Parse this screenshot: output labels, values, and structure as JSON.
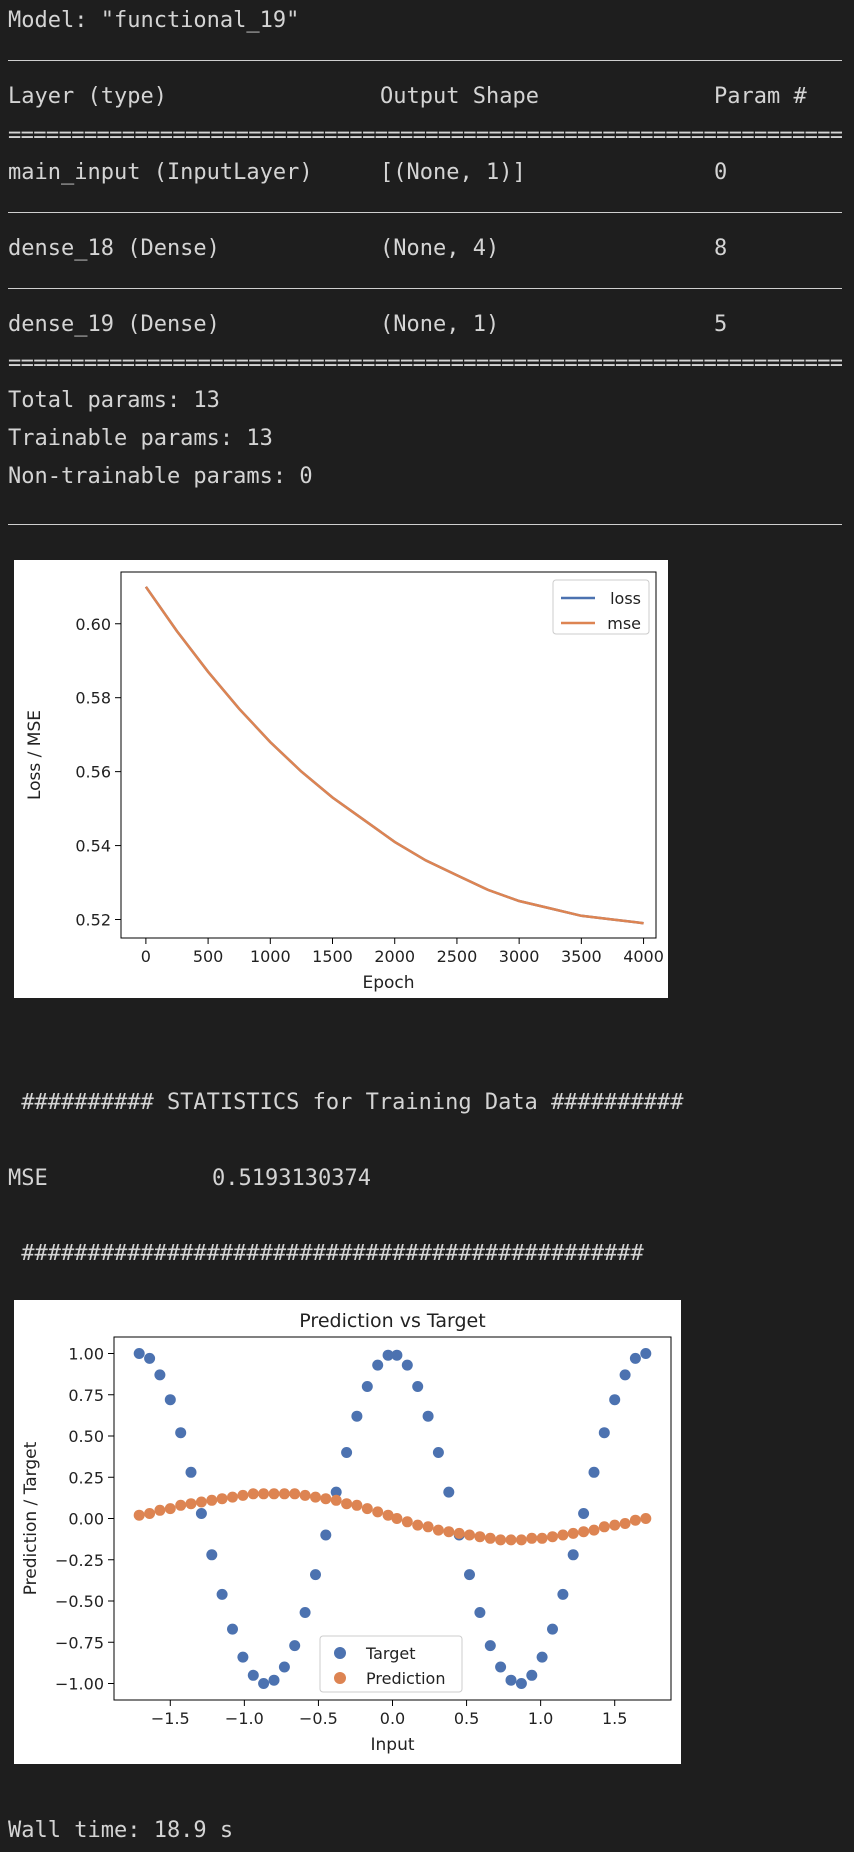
{
  "summary": {
    "model_line": "Model: \"functional_19\"",
    "headers": [
      "Layer (type)",
      "Output Shape",
      "Param #"
    ],
    "rows": [
      {
        "layer": "main_input (InputLayer)",
        "shape": "[(None, 1)]",
        "params": "0"
      },
      {
        "layer": "dense_18 (Dense)",
        "shape": "(None, 4)",
        "params": "8"
      },
      {
        "layer": "dense_19 (Dense)",
        "shape": "(None, 1)",
        "params": "5"
      }
    ],
    "total": "Total params: 13",
    "trainable": "Trainable params: 13",
    "non_trainable": "Non-trainable params: 0"
  },
  "stats": {
    "header": " ########## STATISTICS for Training Data ##########",
    "mse_label": "MSE",
    "mse_value": "0.5193130374",
    "footer": " ###############################################"
  },
  "wall_time": "Wall time: 18.9 s",
  "colors": {
    "background": "#1e1e1e",
    "text": "#d4d4d4",
    "series_blue": "#4c72b0",
    "series_orange": "#dd8452"
  },
  "chart_data": [
    {
      "type": "line",
      "title": "",
      "xlabel": "Epoch",
      "ylabel": "Loss / MSE",
      "xlim": [
        -200,
        4100
      ],
      "ylim": [
        0.515,
        0.614
      ],
      "xticks": [
        "0",
        "500",
        "1000",
        "1500",
        "2000",
        "2500",
        "3000",
        "3500",
        "4000"
      ],
      "yticks": [
        "0.52",
        "0.54",
        "0.56",
        "0.58",
        "0.60"
      ],
      "legend_position": "top-right",
      "x": [
        0,
        250,
        500,
        750,
        1000,
        1250,
        1500,
        1750,
        2000,
        2250,
        2500,
        2750,
        3000,
        3250,
        3500,
        3750,
        4000
      ],
      "series": [
        {
          "name": "loss",
          "color": "#4c72b0",
          "values": [
            0.61,
            0.598,
            0.587,
            0.577,
            0.568,
            0.56,
            0.553,
            0.547,
            0.541,
            0.536,
            0.532,
            0.528,
            0.525,
            0.523,
            0.521,
            0.52,
            0.519
          ]
        },
        {
          "name": "mse",
          "color": "#dd8452",
          "values": [
            0.61,
            0.598,
            0.587,
            0.577,
            0.568,
            0.56,
            0.553,
            0.547,
            0.541,
            0.536,
            0.532,
            0.528,
            0.525,
            0.523,
            0.521,
            0.52,
            0.519
          ]
        }
      ]
    },
    {
      "type": "scatter",
      "title": "Prediction vs Target",
      "xlabel": "Input",
      "ylabel": "Prediction / Target",
      "xlim": [
        -1.88,
        1.88
      ],
      "ylim": [
        -1.1,
        1.1
      ],
      "xticks": [
        "−1.5",
        "−1.0",
        "−0.5",
        "0.0",
        "0.5",
        "1.0",
        "1.5"
      ],
      "yticks": [
        "1.00",
        "0.75",
        "0.50",
        "0.25",
        "0.00",
        "−0.25",
        "−0.50",
        "−0.75",
        "−1.00"
      ],
      "legend_position": "lower center",
      "series": [
        {
          "name": "Target",
          "color": "#4c72b0",
          "points": [
            [
              -1.71,
              1.0
            ],
            [
              -1.64,
              0.97
            ],
            [
              -1.57,
              0.87
            ],
            [
              -1.5,
              0.72
            ],
            [
              -1.43,
              0.52
            ],
            [
              -1.36,
              0.28
            ],
            [
              -1.29,
              0.03
            ],
            [
              -1.22,
              -0.22
            ],
            [
              -1.15,
              -0.46
            ],
            [
              -1.08,
              -0.67
            ],
            [
              -1.01,
              -0.84
            ],
            [
              -0.94,
              -0.95
            ],
            [
              -0.87,
              -1.0
            ],
            [
              -0.8,
              -0.98
            ],
            [
              -0.73,
              -0.9
            ],
            [
              -0.66,
              -0.77
            ],
            [
              -0.59,
              -0.57
            ],
            [
              -0.52,
              -0.34
            ],
            [
              -0.45,
              -0.1
            ],
            [
              -0.38,
              0.16
            ],
            [
              -0.31,
              0.4
            ],
            [
              -0.24,
              0.62
            ],
            [
              -0.17,
              0.8
            ],
            [
              -0.1,
              0.93
            ],
            [
              -0.03,
              0.99
            ],
            [
              0.03,
              0.99
            ],
            [
              0.1,
              0.93
            ],
            [
              0.17,
              0.8
            ],
            [
              0.24,
              0.62
            ],
            [
              0.31,
              0.4
            ],
            [
              0.38,
              0.16
            ],
            [
              0.45,
              -0.1
            ],
            [
              0.52,
              -0.34
            ],
            [
              0.59,
              -0.57
            ],
            [
              0.66,
              -0.77
            ],
            [
              0.73,
              -0.9
            ],
            [
              0.8,
              -0.98
            ],
            [
              0.87,
              -1.0
            ],
            [
              0.94,
              -0.95
            ],
            [
              1.01,
              -0.84
            ],
            [
              1.08,
              -0.67
            ],
            [
              1.15,
              -0.46
            ],
            [
              1.22,
              -0.22
            ],
            [
              1.29,
              0.03
            ],
            [
              1.36,
              0.28
            ],
            [
              1.43,
              0.52
            ],
            [
              1.5,
              0.72
            ],
            [
              1.57,
              0.87
            ],
            [
              1.64,
              0.97
            ],
            [
              1.71,
              1.0
            ]
          ]
        },
        {
          "name": "Prediction",
          "color": "#dd8452",
          "points": [
            [
              -1.71,
              0.02
            ],
            [
              -1.64,
              0.03
            ],
            [
              -1.57,
              0.05
            ],
            [
              -1.5,
              0.06
            ],
            [
              -1.43,
              0.08
            ],
            [
              -1.36,
              0.09
            ],
            [
              -1.29,
              0.1
            ],
            [
              -1.22,
              0.11
            ],
            [
              -1.15,
              0.12
            ],
            [
              -1.08,
              0.13
            ],
            [
              -1.01,
              0.14
            ],
            [
              -0.94,
              0.15
            ],
            [
              -0.87,
              0.15
            ],
            [
              -0.8,
              0.15
            ],
            [
              -0.73,
              0.15
            ],
            [
              -0.66,
              0.15
            ],
            [
              -0.59,
              0.14
            ],
            [
              -0.52,
              0.13
            ],
            [
              -0.45,
              0.12
            ],
            [
              -0.38,
              0.11
            ],
            [
              -0.31,
              0.09
            ],
            [
              -0.24,
              0.08
            ],
            [
              -0.17,
              0.06
            ],
            [
              -0.1,
              0.04
            ],
            [
              -0.03,
              0.02
            ],
            [
              0.03,
              0.0
            ],
            [
              0.1,
              -0.02
            ],
            [
              0.17,
              -0.04
            ],
            [
              0.24,
              -0.05
            ],
            [
              0.31,
              -0.07
            ],
            [
              0.38,
              -0.08
            ],
            [
              0.45,
              -0.09
            ],
            [
              0.52,
              -0.1
            ],
            [
              0.59,
              -0.11
            ],
            [
              0.66,
              -0.12
            ],
            [
              0.73,
              -0.13
            ],
            [
              0.8,
              -0.13
            ],
            [
              0.87,
              -0.13
            ],
            [
              0.94,
              -0.12
            ],
            [
              1.01,
              -0.12
            ],
            [
              1.08,
              -0.11
            ],
            [
              1.15,
              -0.1
            ],
            [
              1.22,
              -0.09
            ],
            [
              1.29,
              -0.08
            ],
            [
              1.36,
              -0.07
            ],
            [
              1.43,
              -0.05
            ],
            [
              1.5,
              -0.04
            ],
            [
              1.57,
              -0.03
            ],
            [
              1.64,
              -0.01
            ],
            [
              1.71,
              0.0
            ]
          ]
        }
      ]
    }
  ]
}
